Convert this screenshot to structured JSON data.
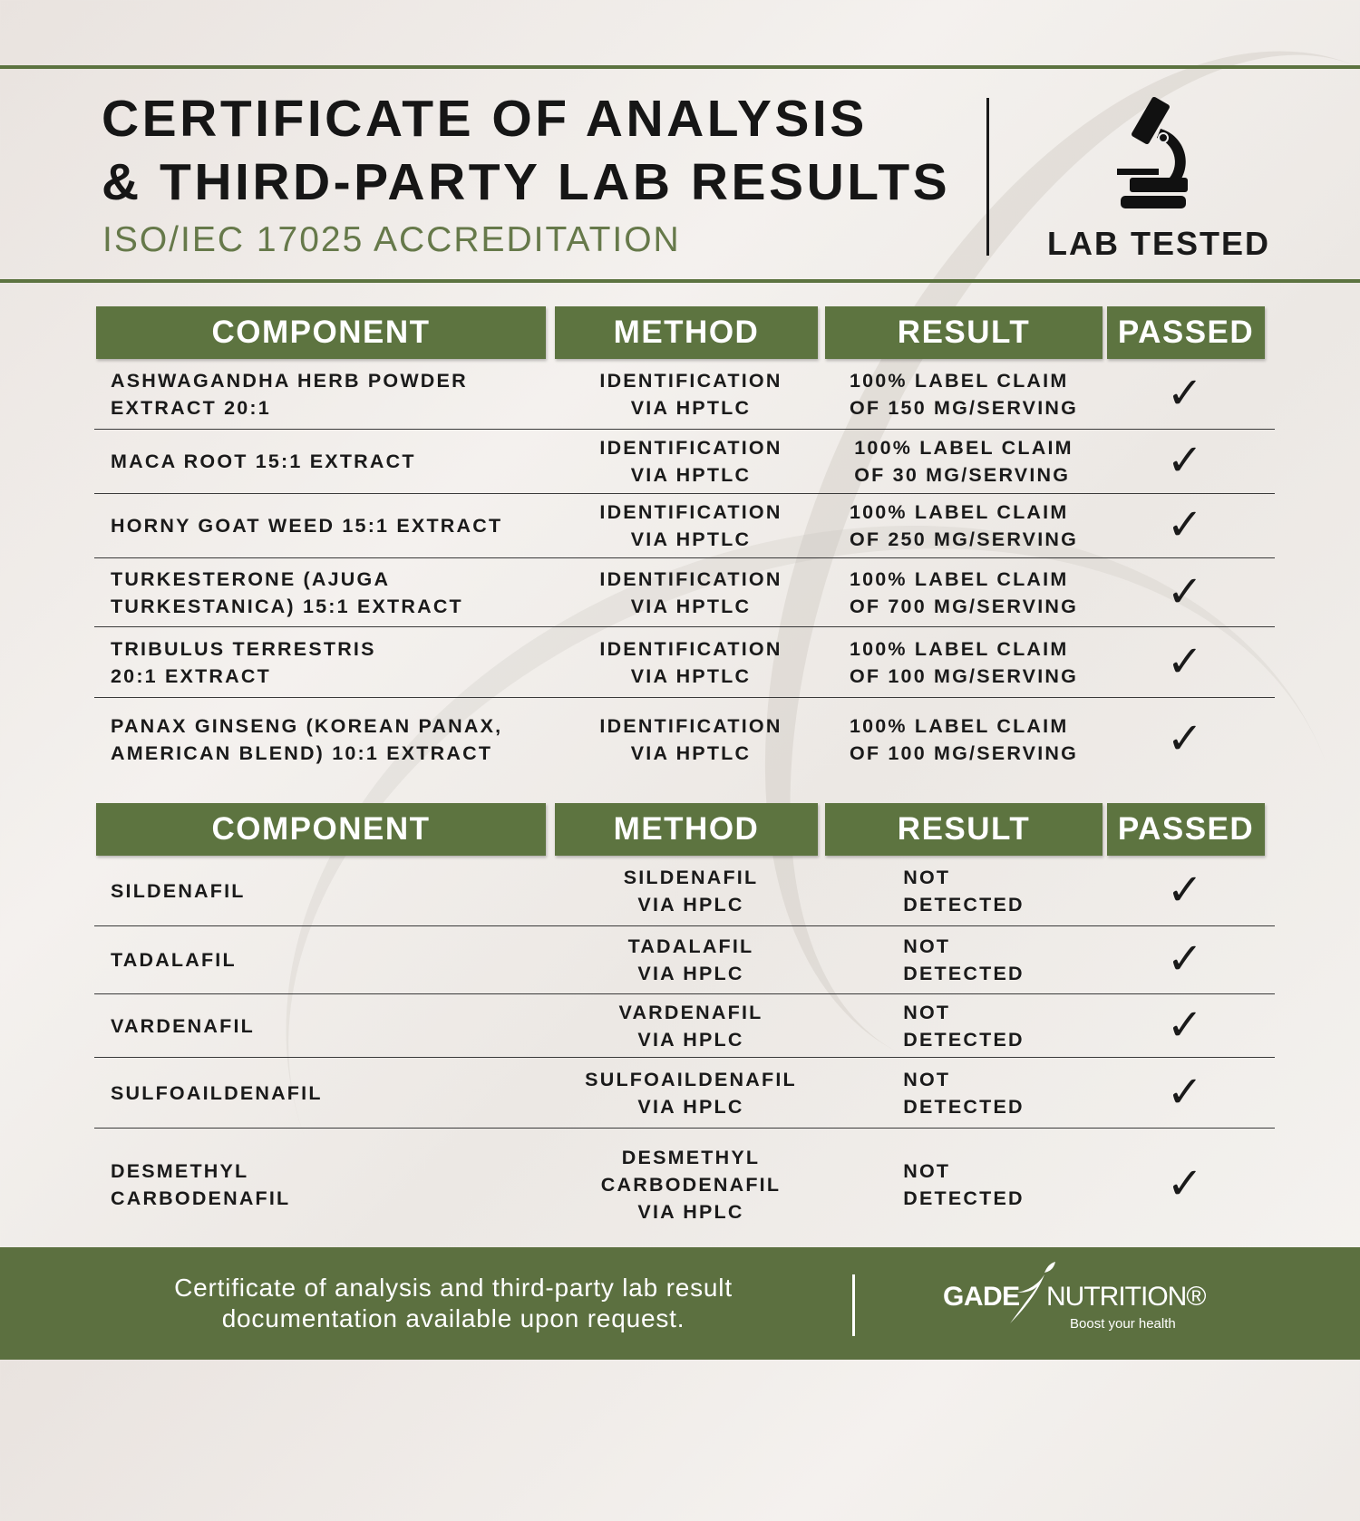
{
  "header": {
    "title_line1": "CERTIFICATE OF ANALYSIS",
    "title_line2": "& THIRD-PARTY LAB RESULTS",
    "subtitle": "ISO/IEC 17025 ACCREDITATION",
    "badge_label": "LAB TESTED",
    "badge_icon": "microscope-icon"
  },
  "colors": {
    "accent_green": "#5d7440",
    "subtitle_green": "#66794a"
  },
  "table1": {
    "headers": [
      "COMPONENT",
      "METHOD",
      "RESULT",
      "PASSED"
    ],
    "rows": [
      {
        "component": "ASHWAGANDHA HERB POWDER\nEXTRACT 20:1",
        "method": "IDENTIFICATION\nVIA HPTLC",
        "result": "100%  LABEL CLAIM\nOF 150 MG/SERVING",
        "passed": "✓"
      },
      {
        "component": "MACA ROOT 15:1 EXTRACT",
        "method": "IDENTIFICATION\nVIA HPTLC",
        "result": "100%  LABEL CLAIM\n OF 30 MG/SERVING",
        "passed": "✓"
      },
      {
        "component": "HORNY GOAT WEED 15:1 EXTRACT",
        "method": "IDENTIFICATION\nVIA HPTLC",
        "result": "100%  LABEL CLAIM\nOF 250 MG/SERVING",
        "passed": "✓"
      },
      {
        "component": "TURKESTERONE (AJUGA\nTURKESTANICA) 15:1 EXTRACT",
        "method": "IDENTIFICATION\nVIA HPTLC",
        "result": "100%  LABEL CLAIM\nOF 700 MG/SERVING",
        "passed": "✓"
      },
      {
        "component": "TRIBULUS TERRESTRIS\n20:1 EXTRACT",
        "method": "IDENTIFICATION\nVIA HPTLC",
        "result": "100%  LABEL CLAIM\nOF 100 MG/SERVING",
        "passed": "✓"
      },
      {
        "component": "PANAX GINSENG (KOREAN PANAX,\nAMERICAN BLEND) 10:1 EXTRACT",
        "method": "IDENTIFICATION\nVIA HPTLC",
        "result": "100%  LABEL CLAIM\nOF 100 MG/SERVING",
        "passed": "✓"
      }
    ]
  },
  "table2": {
    "headers": [
      "COMPONENT",
      "METHOD",
      "RESULT",
      "PASSED"
    ],
    "rows": [
      {
        "component": "SILDENAFIL",
        "method": "SILDENAFIL\nVIA HPLC",
        "result": "NOT\nDETECTED",
        "passed": "✓"
      },
      {
        "component": "TADALAFIL",
        "method": "TADALAFIL\nVIA HPLC",
        "result": "NOT\nDETECTED",
        "passed": "✓"
      },
      {
        "component": "VARDENAFIL",
        "method": "VARDENAFIL\nVIA HPLC",
        "result": "NOT\nDETECTED",
        "passed": "✓"
      },
      {
        "component": "SULFOAILDENAFIL",
        "method": "SULFOAILDENAFIL\nVIA HPLC",
        "result": "NOT\nDETECTED",
        "passed": "✓"
      },
      {
        "component": "DESMETHYL\nCARBODENAFIL",
        "method": "DESMETHYL\nCARBODENAFIL\nVIA HPLC",
        "result": "NOT\nDETECTED",
        "passed": "✓"
      }
    ]
  },
  "footer": {
    "text": "Certificate of analysis and third-party lab result documentation available upon request.",
    "logo_brand": "GADE",
    "logo_name": "NUTRITION®",
    "logo_tagline": "Boost your health"
  }
}
